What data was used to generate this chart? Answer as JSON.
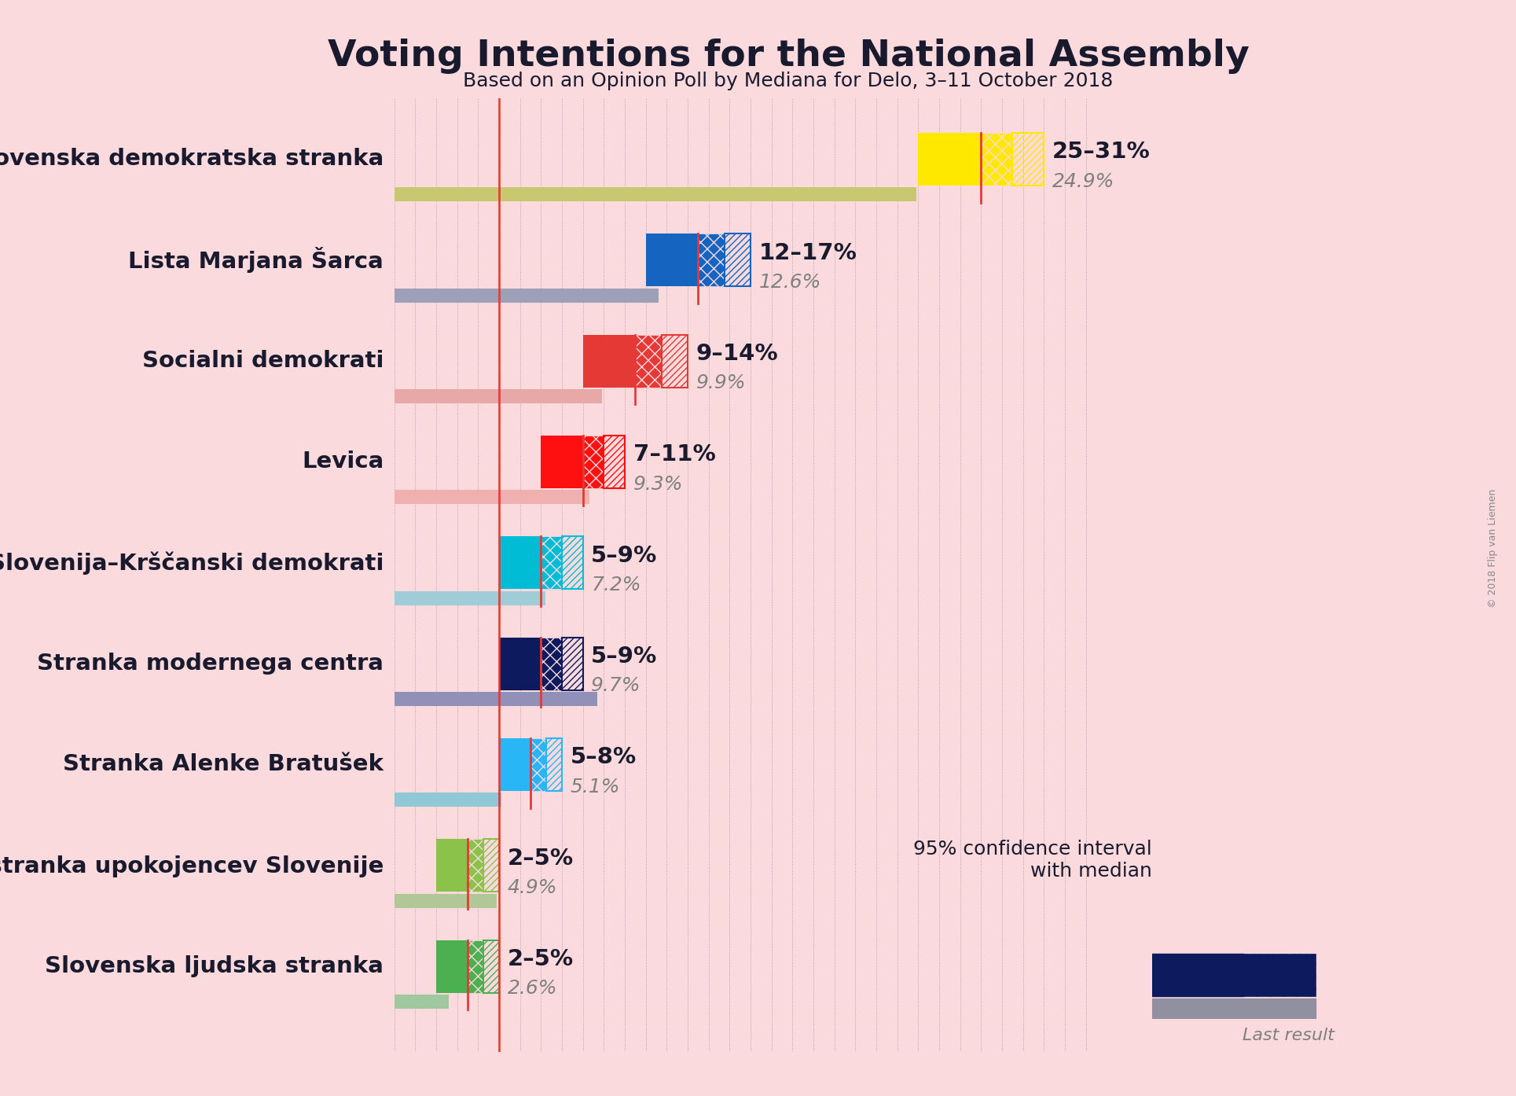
{
  "title": "Voting Intentions for the National Assembly",
  "subtitle": "Based on an Opinion Poll by Mediana for Delo, 3–11 October 2018",
  "background_color": "#FADADD",
  "title_color": "#1a1a2e",
  "parties": [
    {
      "name": "Slovenska demokratska stranka",
      "ci_low": 25,
      "ci_high": 31,
      "median": 28,
      "last_result": 24.9,
      "color": "#FFE800",
      "last_color": "#C8C870",
      "label": "25–31%",
      "last_label": "24.9%"
    },
    {
      "name": "Lista Marjana Šarca",
      "ci_low": 12,
      "ci_high": 17,
      "median": 14.5,
      "last_result": 12.6,
      "color": "#1565C0",
      "last_color": "#9EA0B8",
      "label": "12–17%",
      "last_label": "12.6%"
    },
    {
      "name": "Socialni demokrati",
      "ci_low": 9,
      "ci_high": 14,
      "median": 11.5,
      "last_result": 9.9,
      "color": "#E53935",
      "last_color": "#E8A8A8",
      "label": "9–14%",
      "last_label": "9.9%"
    },
    {
      "name": "Levica",
      "ci_low": 7,
      "ci_high": 11,
      "median": 9,
      "last_result": 9.3,
      "color": "#FF1010",
      "last_color": "#F0B0B0",
      "label": "7–11%",
      "last_label": "9.3%"
    },
    {
      "name": "Nova Slovenija–Krščanski demokrati",
      "ci_low": 5,
      "ci_high": 9,
      "median": 7,
      "last_result": 7.2,
      "color": "#00BCD4",
      "last_color": "#A0CCD8",
      "label": "5–9%",
      "last_label": "7.2%"
    },
    {
      "name": "Stranka modernega centra",
      "ci_low": 5,
      "ci_high": 9,
      "median": 7,
      "last_result": 9.7,
      "color": "#0D1B5E",
      "last_color": "#9090B8",
      "label": "5–9%",
      "last_label": "9.7%"
    },
    {
      "name": "Stranka Alenke Bratušek",
      "ci_low": 5,
      "ci_high": 8,
      "median": 6.5,
      "last_result": 5.1,
      "color": "#29B6F6",
      "last_color": "#90C8D8",
      "label": "5–8%",
      "last_label": "5.1%"
    },
    {
      "name": "Demokratična stranka upokojencev Slovenije",
      "ci_low": 2,
      "ci_high": 5,
      "median": 3.5,
      "last_result": 4.9,
      "color": "#8BC34A",
      "last_color": "#B0C898",
      "label": "2–5%",
      "last_label": "4.9%"
    },
    {
      "name": "Slovenska ljudska stranka",
      "ci_low": 2,
      "ci_high": 5,
      "median": 3.5,
      "last_result": 2.6,
      "color": "#4CAF50",
      "last_color": "#A0C8A0",
      "label": "2–5%",
      "last_label": "2.6%"
    }
  ],
  "xlim": [
    0,
    34
  ],
  "red_line_x": 5,
  "median_line_color": "#E53935",
  "bar_height": 0.52,
  "last_bar_height": 0.14,
  "label_fontsize": 21,
  "last_label_fontsize": 18,
  "party_fontsize": 21,
  "title_fontsize": 34,
  "subtitle_fontsize": 18,
  "legend_text": "95% confidence interval\nwith median",
  "legend_last": "Last result",
  "copyright": "© 2018 Flip van Liemen"
}
